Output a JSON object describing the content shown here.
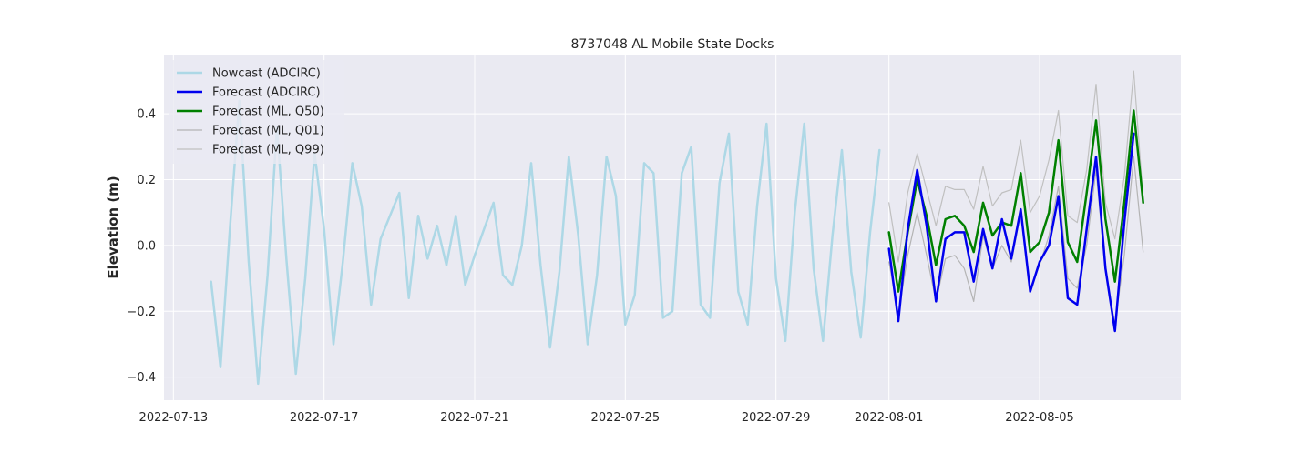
{
  "chart_data": {
    "type": "line",
    "title": "8737048 AL Mobile State Docks",
    "xlabel": "",
    "ylabel": "Elevation (m)",
    "x_unit": "date",
    "xlim": [
      "2022-07-12T18:00",
      "2022-08-08T18:00"
    ],
    "ylim": [
      -0.47,
      0.58
    ],
    "yticks": [
      -0.4,
      -0.2,
      0.0,
      0.2,
      0.4
    ],
    "ytick_labels": [
      "−0.4",
      "−0.2",
      "0.0",
      "0.2",
      "0.4"
    ],
    "xticks": [
      "2022-07-13",
      "2022-07-17",
      "2022-07-21",
      "2022-07-25",
      "2022-07-29",
      "2022-08-01",
      "2022-08-05"
    ],
    "grid": true,
    "legend_position": "top-left",
    "background": "#eaeaf2",
    "series": [
      {
        "name": "Nowcast (ADCIRC)",
        "color": "#add8e6",
        "line_width": 2.5,
        "x": [
          "2022-07-14T00:00",
          "2022-07-14T06:00",
          "2022-07-14T12:00",
          "2022-07-14T18:00",
          "2022-07-15T00:00",
          "2022-07-15T06:00",
          "2022-07-15T12:00",
          "2022-07-15T18:00",
          "2022-07-16T00:00",
          "2022-07-16T06:00",
          "2022-07-16T12:00",
          "2022-07-16T18:00",
          "2022-07-17T00:00",
          "2022-07-17T06:00",
          "2022-07-17T12:00",
          "2022-07-17T18:00",
          "2022-07-18T00:00",
          "2022-07-18T06:00",
          "2022-07-18T12:00",
          "2022-07-18T18:00",
          "2022-07-19T00:00",
          "2022-07-19T06:00",
          "2022-07-19T12:00",
          "2022-07-19T18:00",
          "2022-07-20T00:00",
          "2022-07-20T06:00",
          "2022-07-20T12:00",
          "2022-07-20T18:00",
          "2022-07-21T00:00",
          "2022-07-21T06:00",
          "2022-07-21T12:00",
          "2022-07-21T18:00",
          "2022-07-22T00:00",
          "2022-07-22T06:00",
          "2022-07-22T12:00",
          "2022-07-22T18:00",
          "2022-07-23T00:00",
          "2022-07-23T06:00",
          "2022-07-23T12:00",
          "2022-07-23T18:00",
          "2022-07-24T00:00",
          "2022-07-24T06:00",
          "2022-07-24T12:00",
          "2022-07-24T18:00",
          "2022-07-25T00:00",
          "2022-07-25T06:00",
          "2022-07-25T12:00",
          "2022-07-25T18:00",
          "2022-07-26T00:00",
          "2022-07-26T06:00",
          "2022-07-26T12:00",
          "2022-07-26T18:00",
          "2022-07-27T00:00",
          "2022-07-27T06:00",
          "2022-07-27T12:00",
          "2022-07-27T18:00",
          "2022-07-28T00:00",
          "2022-07-28T06:00",
          "2022-07-28T12:00",
          "2022-07-28T18:00",
          "2022-07-29T00:00",
          "2022-07-29T06:00",
          "2022-07-29T12:00",
          "2022-07-29T18:00",
          "2022-07-30T00:00",
          "2022-07-30T06:00",
          "2022-07-30T12:00",
          "2022-07-30T18:00",
          "2022-07-31T00:00",
          "2022-07-31T06:00",
          "2022-07-31T12:00",
          "2022-07-31T18:00"
        ],
        "y": [
          -0.11,
          -0.37,
          0.05,
          0.44,
          -0.05,
          -0.42,
          -0.09,
          0.36,
          -0.04,
          -0.39,
          -0.1,
          0.28,
          0.05,
          -0.3,
          -0.05,
          0.25,
          0.12,
          -0.18,
          0.02,
          0.09,
          0.16,
          -0.16,
          0.09,
          -0.04,
          0.06,
          -0.06,
          0.09,
          -0.12,
          -0.03,
          0.05,
          0.13,
          -0.09,
          -0.12,
          0.0,
          0.25,
          -0.06,
          -0.31,
          -0.08,
          0.27,
          0.03,
          -0.3,
          -0.09,
          0.27,
          0.15,
          -0.24,
          -0.15,
          0.25,
          0.22,
          -0.22,
          -0.2,
          0.22,
          0.3,
          -0.18,
          -0.22,
          0.19,
          0.34,
          -0.14,
          -0.24,
          0.12,
          0.37,
          -0.1,
          -0.29,
          0.1,
          0.37,
          -0.07,
          -0.29,
          0.03,
          0.29,
          -0.08,
          -0.28,
          0.04,
          0.29
        ]
      },
      {
        "name": "Forecast (ADCIRC)",
        "color": "#0000ee",
        "line_width": 2.5,
        "x": [
          "2022-08-01T00:00",
          "2022-08-01T06:00",
          "2022-08-01T12:00",
          "2022-08-01T18:00",
          "2022-08-02T00:00",
          "2022-08-02T06:00",
          "2022-08-02T12:00",
          "2022-08-02T18:00",
          "2022-08-03T00:00",
          "2022-08-03T06:00",
          "2022-08-03T12:00",
          "2022-08-03T18:00",
          "2022-08-04T00:00",
          "2022-08-04T06:00",
          "2022-08-04T12:00",
          "2022-08-04T18:00",
          "2022-08-05T00:00",
          "2022-08-05T06:00",
          "2022-08-05T12:00",
          "2022-08-05T18:00",
          "2022-08-06T00:00",
          "2022-08-06T06:00",
          "2022-08-06T12:00",
          "2022-08-06T18:00",
          "2022-08-07T00:00",
          "2022-08-07T06:00",
          "2022-08-07T12:00"
        ],
        "y": [
          -0.01,
          -0.23,
          0.05,
          0.23,
          0.06,
          -0.17,
          0.02,
          0.04,
          0.04,
          -0.11,
          0.05,
          -0.07,
          0.08,
          -0.04,
          0.11,
          -0.14,
          -0.05,
          0.0,
          0.15,
          -0.16,
          -0.18,
          0.05,
          0.27,
          -0.07,
          -0.26,
          0.07,
          0.34
        ]
      },
      {
        "name": "Forecast (ML, Q50)",
        "color": "#008000",
        "line_width": 2.5,
        "x": [
          "2022-08-01T00:00",
          "2022-08-01T06:00",
          "2022-08-01T12:00",
          "2022-08-01T18:00",
          "2022-08-02T00:00",
          "2022-08-02T06:00",
          "2022-08-02T12:00",
          "2022-08-02T18:00",
          "2022-08-03T00:00",
          "2022-08-03T06:00",
          "2022-08-03T12:00",
          "2022-08-03T18:00",
          "2022-08-04T00:00",
          "2022-08-04T06:00",
          "2022-08-04T12:00",
          "2022-08-04T18:00",
          "2022-08-05T00:00",
          "2022-08-05T06:00",
          "2022-08-05T12:00",
          "2022-08-05T18:00",
          "2022-08-06T00:00",
          "2022-08-06T06:00",
          "2022-08-06T12:00",
          "2022-08-06T18:00",
          "2022-08-07T00:00",
          "2022-08-07T06:00",
          "2022-08-07T12:00",
          "2022-08-07T18:00"
        ],
        "y": [
          0.04,
          -0.14,
          0.04,
          0.2,
          0.09,
          -0.06,
          0.08,
          0.09,
          0.06,
          -0.02,
          0.13,
          0.03,
          0.07,
          0.06,
          0.22,
          -0.02,
          0.01,
          0.1,
          0.32,
          0.01,
          -0.05,
          0.16,
          0.38,
          0.08,
          -0.11,
          0.13,
          0.41,
          0.13
        ]
      },
      {
        "name": "Forecast (ML, Q01)",
        "color": "#b4b4b4",
        "line_width": 1.2,
        "x": [
          "2022-08-01T00:00",
          "2022-08-01T06:00",
          "2022-08-01T12:00",
          "2022-08-01T18:00",
          "2022-08-02T00:00",
          "2022-08-02T06:00",
          "2022-08-02T12:00",
          "2022-08-02T18:00",
          "2022-08-03T00:00",
          "2022-08-03T06:00",
          "2022-08-03T12:00",
          "2022-08-03T18:00",
          "2022-08-04T00:00",
          "2022-08-04T06:00",
          "2022-08-04T12:00",
          "2022-08-04T18:00",
          "2022-08-05T00:00",
          "2022-08-05T06:00",
          "2022-08-05T12:00",
          "2022-08-05T18:00",
          "2022-08-06T00:00",
          "2022-08-06T06:00",
          "2022-08-06T12:00",
          "2022-08-06T18:00",
          "2022-08-07T00:00",
          "2022-08-07T06:00",
          "2022-08-07T12:00",
          "2022-08-07T18:00"
        ],
        "y": [
          -0.05,
          -0.21,
          -0.03,
          0.1,
          -0.03,
          -0.17,
          -0.04,
          -0.03,
          -0.07,
          -0.17,
          0.03,
          -0.07,
          0.0,
          -0.05,
          0.1,
          -0.13,
          -0.06,
          0.03,
          0.18,
          -0.1,
          -0.13,
          0.0,
          0.23,
          -0.08,
          -0.24,
          -0.03,
          0.27,
          -0.02
        ]
      },
      {
        "name": "Forecast (ML, Q99)",
        "color": "#c0c0c0",
        "line_width": 1.2,
        "x": [
          "2022-08-01T00:00",
          "2022-08-01T06:00",
          "2022-08-01T12:00",
          "2022-08-01T18:00",
          "2022-08-02T00:00",
          "2022-08-02T06:00",
          "2022-08-02T12:00",
          "2022-08-02T18:00",
          "2022-08-03T00:00",
          "2022-08-03T06:00",
          "2022-08-03T12:00",
          "2022-08-03T18:00",
          "2022-08-04T00:00",
          "2022-08-04T06:00",
          "2022-08-04T12:00",
          "2022-08-04T18:00",
          "2022-08-05T00:00",
          "2022-08-05T06:00",
          "2022-08-05T12:00",
          "2022-08-05T18:00",
          "2022-08-06T00:00",
          "2022-08-06T06:00",
          "2022-08-06T12:00",
          "2022-08-06T18:00",
          "2022-08-07T00:00",
          "2022-08-07T06:00",
          "2022-08-07T12:00",
          "2022-08-07T18:00"
        ],
        "y": [
          0.13,
          -0.05,
          0.16,
          0.28,
          0.17,
          0.06,
          0.18,
          0.17,
          0.17,
          0.11,
          0.24,
          0.12,
          0.16,
          0.17,
          0.32,
          0.1,
          0.15,
          0.26,
          0.41,
          0.09,
          0.07,
          0.23,
          0.49,
          0.13,
          0.02,
          0.21,
          0.53,
          0.14
        ]
      }
    ]
  }
}
